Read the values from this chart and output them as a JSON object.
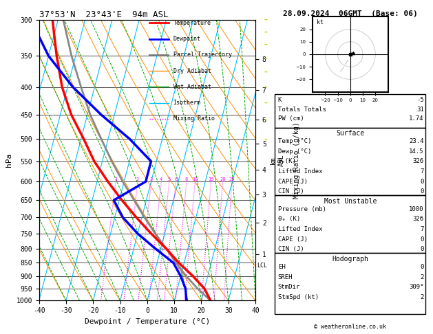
{
  "title_left": "37°53'N  23°43'E  94m ASL",
  "title_right": "28.09.2024  06GMT  (Base: 06)",
  "xlabel": "Dewpoint / Temperature (°C)",
  "pressure_levels": [
    300,
    350,
    400,
    450,
    500,
    550,
    600,
    650,
    700,
    750,
    800,
    850,
    900,
    950,
    1000
  ],
  "xlim": [
    -40,
    40
  ],
  "pmin": 300,
  "pmax": 1000,
  "skew_factor": 27.0,
  "temp_profile_temps": [
    23.4,
    20.0,
    14.5,
    8.0,
    2.0,
    -5.0,
    -12.0,
    -19.0,
    -26.0,
    -33.0,
    -39.0,
    -46.0,
    -52.0,
    -57.0,
    -62.0
  ],
  "temp_profile_pressures": [
    1000,
    950,
    900,
    850,
    800,
    750,
    700,
    650,
    600,
    550,
    500,
    450,
    400,
    350,
    300
  ],
  "dewp_profile_temps": [
    14.5,
    13.0,
    10.0,
    6.0,
    -2.0,
    -10.0,
    -17.0,
    -22.0,
    -12.0,
    -12.0,
    -22.0,
    -35.0,
    -48.0,
    -60.0,
    -70.0
  ],
  "dewp_profile_pressures": [
    1000,
    950,
    900,
    850,
    800,
    750,
    700,
    650,
    600,
    550,
    500,
    450,
    400,
    350,
    300
  ],
  "parcel_temps": [
    23.4,
    17.5,
    12.0,
    7.0,
    2.0,
    -3.5,
    -9.0,
    -14.5,
    -20.5,
    -26.5,
    -32.5,
    -39.0,
    -45.0,
    -51.5,
    -58.0
  ],
  "parcel_pressures": [
    1000,
    950,
    900,
    850,
    800,
    750,
    700,
    650,
    600,
    550,
    500,
    450,
    400,
    350,
    300
  ],
  "isotherm_color": "#00bfff",
  "dry_adiabat_color": "#ff8c00",
  "wet_adiabat_color": "#00aa00",
  "mixing_ratio_color": "#ff00ff",
  "temp_color": "#ff0000",
  "dewp_color": "#0000ff",
  "parcel_color": "#888888",
  "mixing_ratios": [
    1,
    2,
    3,
    4,
    5,
    6,
    8,
    10,
    15,
    20,
    25
  ],
  "km_asl_labels": [
    8,
    7,
    6,
    5,
    4,
    3,
    2,
    1
  ],
  "km_asl_pressures": [
    355,
    405,
    460,
    510,
    570,
    635,
    715,
    820
  ],
  "lcl_pressure": 860,
  "stats_K": -5,
  "stats_TT": 31,
  "stats_PW": 1.74,
  "stats_surf_temp": 23.4,
  "stats_surf_dewp": 14.5,
  "stats_surf_theta_e": 326,
  "stats_surf_LI": 7,
  "stats_surf_CAPE": 0,
  "stats_surf_CIN": 0,
  "stats_MU_pressure": 1000,
  "stats_MU_theta_e": 326,
  "stats_MU_LI": 7,
  "stats_MU_CAPE": 0,
  "stats_MU_CIN": 0,
  "stats_EH": 0,
  "stats_SREH": 2,
  "stats_StmDir": "309°",
  "stats_StmSpd": 2
}
